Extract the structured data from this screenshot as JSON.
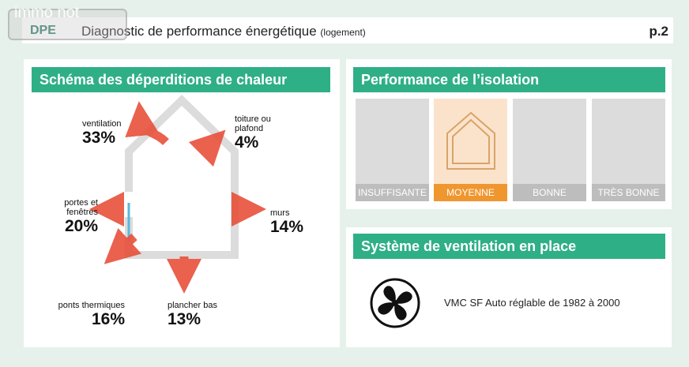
{
  "header": {
    "logo": "immo not",
    "dpe": "DPE",
    "title": "Diagnostic de performance énergétique",
    "subtitle": "(logement)",
    "page": "p.2"
  },
  "deperditions": {
    "title": "Schéma des déperditions de chaleur",
    "items": [
      {
        "label": "ventilation",
        "pct": "33%"
      },
      {
        "label": "toiture ou plafond",
        "pct": "4%"
      },
      {
        "label": "portes et fenêtres",
        "pct": "20%"
      },
      {
        "label": "murs",
        "pct": "14%"
      },
      {
        "label": "ponts thermiques",
        "pct": "16%"
      },
      {
        "label": "plancher bas",
        "pct": "13%"
      }
    ]
  },
  "isolation": {
    "title": "Performance de l’isolation",
    "levels": [
      "INSUFFISANTE",
      "MOYENNE",
      "BONNE",
      "TRÈS BONNE"
    ],
    "selected": "MOYENNE"
  },
  "ventilation": {
    "title": "Système de ventilation en place",
    "text": "VMC SF Auto réglable de 1982 à 2000"
  },
  "colors": {
    "green": "#2faf86",
    "orange": "#f0962f",
    "arrow": "#e8503a"
  }
}
